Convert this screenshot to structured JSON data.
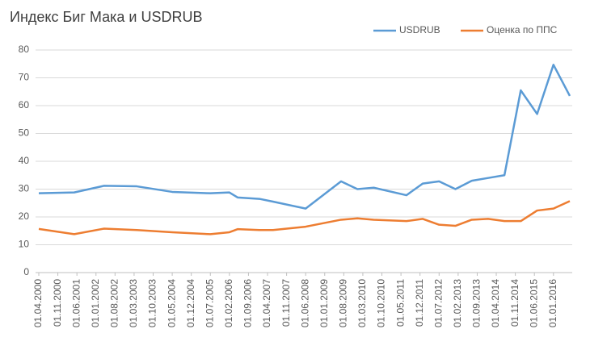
{
  "chart_data": {
    "type": "line",
    "title": "Индекс Биг Мака и USDRUB",
    "x": [
      "01.04.2000",
      "01.05.2001",
      "01.04.2002",
      "01.04.2003",
      "01.05.2004",
      "01.07.2005",
      "01.02.2006",
      "01.05.2006",
      "01.01.2007",
      "01.06.2007",
      "01.06.2008",
      "01.07.2009",
      "01.01.2010",
      "01.07.2010",
      "01.07.2011",
      "01.01.2012",
      "01.07.2012",
      "01.01.2013",
      "01.07.2013",
      "01.01.2014",
      "01.07.2014",
      "01.01.2015",
      "01.07.2015",
      "01.01.2016",
      "01.07.2016"
    ],
    "series": [
      {
        "name": "USDRUB",
        "color": "#5b9bd5",
        "values": [
          28.5,
          28.8,
          31.2,
          31,
          29,
          28.5,
          28.8,
          27,
          26.5,
          25.5,
          23,
          32.8,
          30,
          30.5,
          27.8,
          32,
          32.8,
          30,
          33,
          34,
          35,
          65.5,
          57,
          74.7,
          63.5
        ]
      },
      {
        "name": "Оценка по ППС",
        "color": "#ed7d31",
        "values": [
          15.7,
          13.8,
          15.8,
          15.3,
          14.5,
          13.8,
          14.5,
          15.6,
          15.3,
          15.3,
          16.5,
          19,
          19.5,
          19,
          18.5,
          19.3,
          17.2,
          16.8,
          19,
          19.3,
          18.5,
          18.5,
          22.3,
          23,
          25.7
        ]
      }
    ],
    "xlim": [
      "01.04.2000",
      "01.07.2016"
    ],
    "xticks": [
      "01.04.2000",
      "01.11.2000",
      "01.06.2001",
      "01.01.2002",
      "01.08.2002",
      "01.03.2003",
      "01.10.2003",
      "01.05.2004",
      "01.12.2004",
      "01.07.2005",
      "01.02.2006",
      "01.09.2006",
      "01.04.2007",
      "01.11.2007",
      "01.06.2008",
      "01.01.2009",
      "01.08.2009",
      "01.03.2010",
      "01.10.2010",
      "01.05.2011",
      "01.12.2011",
      "01.07.2012",
      "01.02.2013",
      "01.09.2013",
      "01.04.2014",
      "01.11.2014",
      "01.06.2015",
      "01.01.2016"
    ],
    "ylim": [
      0,
      80
    ],
    "yticks": [
      0,
      10,
      20,
      30,
      40,
      50,
      60,
      70,
      80
    ],
    "grid": true,
    "legend": "top-right"
  }
}
